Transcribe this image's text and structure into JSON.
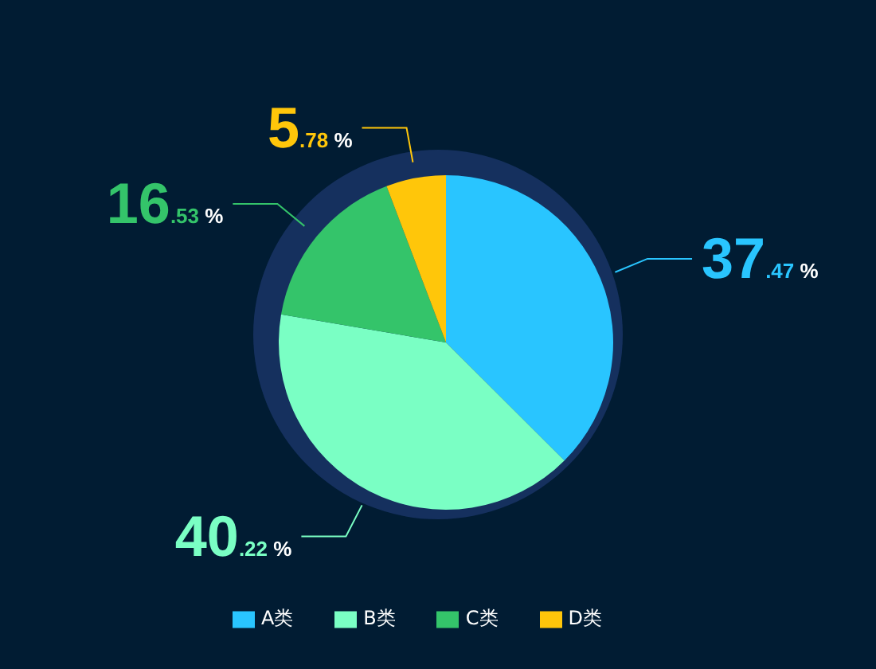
{
  "chart_data": {
    "type": "pie",
    "categories": [
      "A类",
      "B类",
      "C类",
      "D类"
    ],
    "values": [
      37.47,
      40.22,
      16.53,
      5.78
    ],
    "colors": [
      "#29c5ff",
      "#7affc4",
      "#34c46a",
      "#ffc60a"
    ],
    "value_labels": [
      "37.47 %",
      "40.22 %",
      "16.53 %",
      "5.78 %"
    ],
    "legend": "bottom"
  }
}
